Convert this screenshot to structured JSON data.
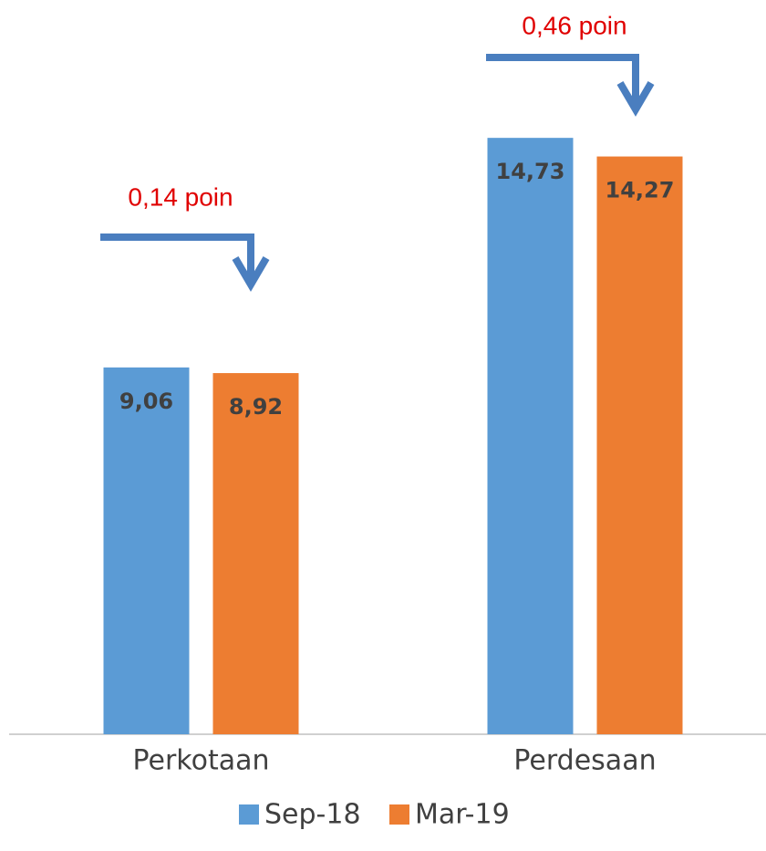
{
  "chart_data": {
    "type": "bar",
    "categories": [
      "Perkotaan",
      "Perdesaan"
    ],
    "series": [
      {
        "name": "Sep-18",
        "color": "#5b9bd5",
        "values": [
          9.06,
          14.73
        ],
        "value_labels": [
          "9,06",
          "14,73"
        ]
      },
      {
        "name": "Mar-19",
        "color": "#ed7d31",
        "values": [
          8.92,
          14.27
        ],
        "value_labels": [
          "8,92",
          "14,27"
        ]
      }
    ],
    "ylim": [
      0,
      18
    ],
    "annotations": [
      "0,14 poin",
      "0,46 poin"
    ]
  }
}
